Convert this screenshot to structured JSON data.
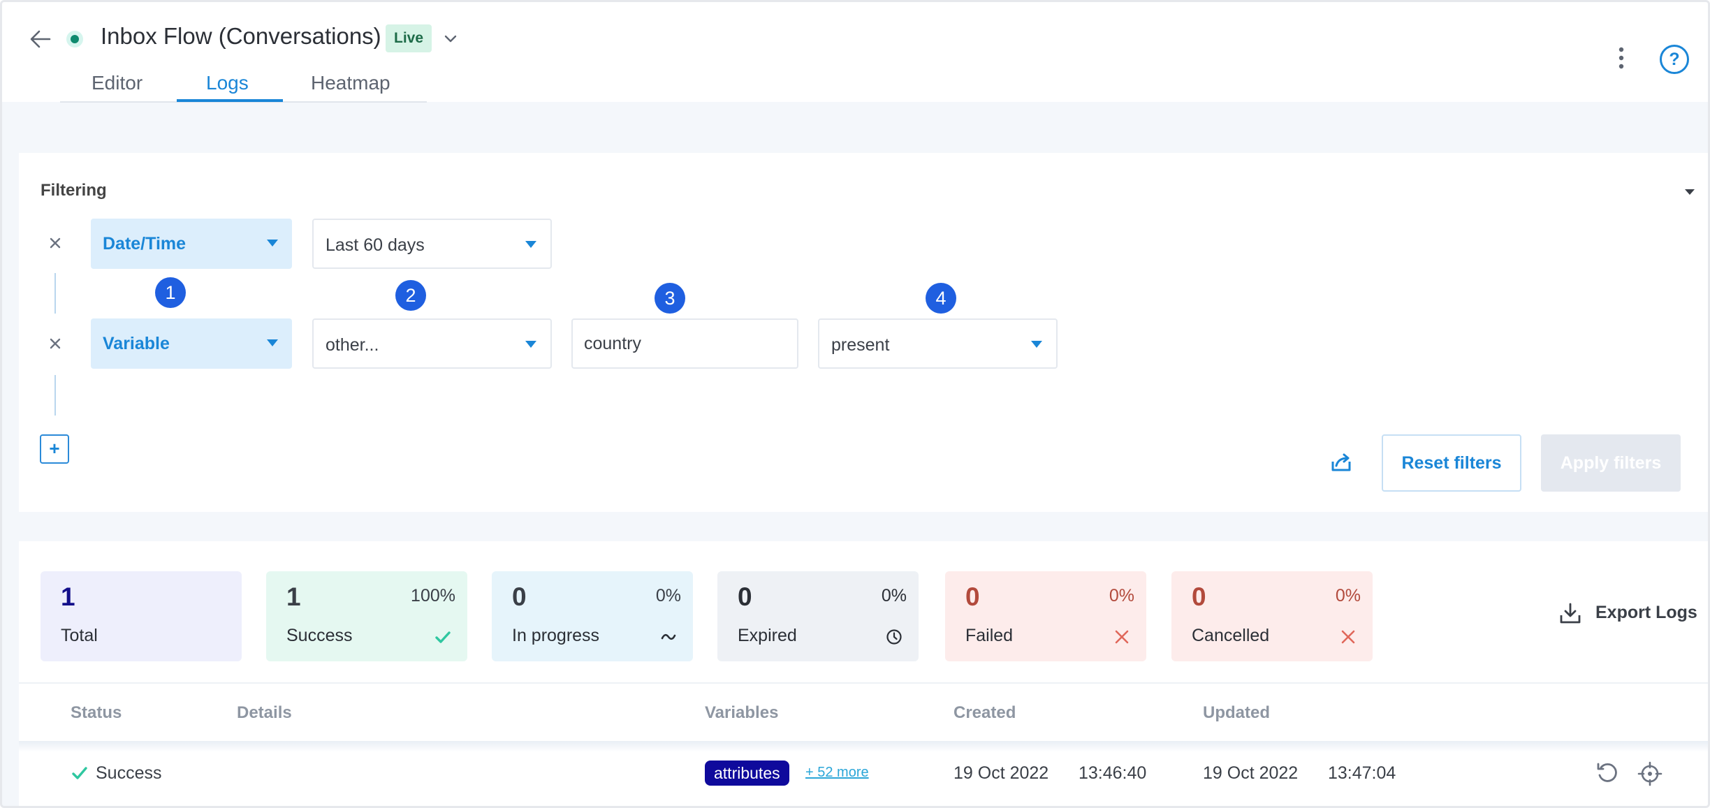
{
  "header": {
    "title": "Inbox Flow (Conversations)",
    "badge": "Live",
    "tabs": [
      {
        "label": "Editor",
        "active": false
      },
      {
        "label": "Logs",
        "active": true
      },
      {
        "label": "Heatmap",
        "active": false
      }
    ],
    "help_glyph": "?"
  },
  "filters": {
    "heading": "Filtering",
    "rows": [
      {
        "field": "Date/Time",
        "operator": "Last 60 days"
      },
      {
        "field": "Variable",
        "operator": "other...",
        "value": "country",
        "condition": "present"
      }
    ],
    "step_badges": [
      "1",
      "2",
      "3",
      "4"
    ],
    "add_label": "+",
    "reset_label": "Reset filters",
    "apply_label": "Apply filters"
  },
  "stats": {
    "total": {
      "count": "1",
      "label": "Total"
    },
    "success": {
      "count": "1",
      "pct": "100%",
      "label": "Success"
    },
    "in_progress": {
      "count": "0",
      "pct": "0%",
      "label": "In progress"
    },
    "expired": {
      "count": "0",
      "pct": "0%",
      "label": "Expired"
    },
    "failed": {
      "count": "0",
      "pct": "0%",
      "label": "Failed"
    },
    "cancelled": {
      "count": "0",
      "pct": "0%",
      "label": "Cancelled"
    },
    "export_label": "Export Logs"
  },
  "table": {
    "columns": [
      "Status",
      "Details",
      "Variables",
      "Created",
      "Updated"
    ],
    "rows": [
      {
        "status": "Success",
        "variable_pill": "attributes",
        "more": "+ 52 more",
        "created_date": "19 Oct 2022",
        "created_time": "13:46:40",
        "updated_date": "19 Oct 2022",
        "updated_time": "13:47:04"
      }
    ]
  },
  "colors": {
    "accent": "#1a86d7",
    "live": "#0e8a6e",
    "step_badge": "#1f5fe0",
    "pill": "#0f0a9c",
    "success": "#2fc7a0",
    "failed": "#e0675a"
  },
  "icons": [
    "back-arrow-icon",
    "status-dot-icon",
    "chevron-down-icon",
    "kebab-menu-icon",
    "help-icon",
    "close-icon",
    "caret-down-icon",
    "share-icon",
    "checkmark-icon",
    "tilde-icon",
    "clock-icon",
    "x-icon",
    "download-icon",
    "retry-icon",
    "crosshair-icon"
  ]
}
